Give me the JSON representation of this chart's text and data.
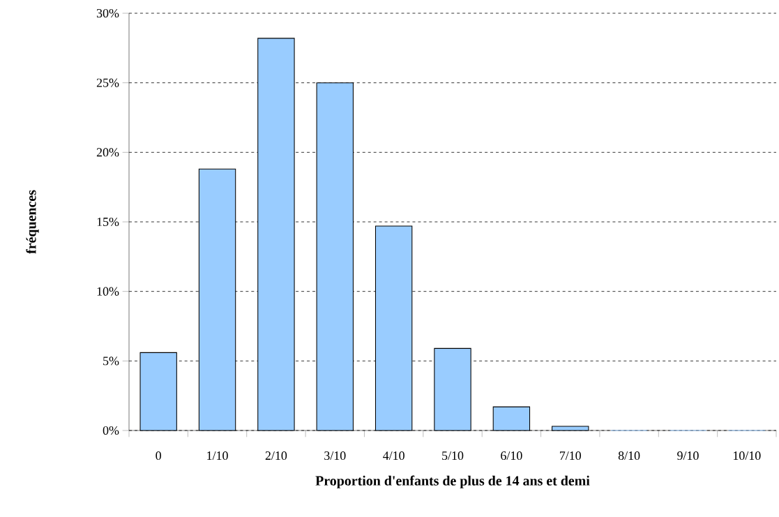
{
  "chart_data": {
    "type": "bar",
    "xlabel": "Proportion d'enfants de plus de 14 ans et demi",
    "ylabel": "fréquences",
    "categories": [
      "0",
      "1/10",
      "2/10",
      "3/10",
      "4/10",
      "5/10",
      "6/10",
      "7/10",
      "8/10",
      "9/10",
      "10/10"
    ],
    "values": [
      5.6,
      18.8,
      28.2,
      25.0,
      14.7,
      5.9,
      1.7,
      0.3,
      0,
      0,
      0
    ],
    "color": "#99ccff",
    "ylim": [
      0,
      30
    ],
    "yticks": [
      {
        "value": 0,
        "label": "0%"
      },
      {
        "value": 5,
        "label": "5%"
      },
      {
        "value": 10,
        "label": "10%"
      },
      {
        "value": 15,
        "label": "15%"
      },
      {
        "value": 20,
        "label": "20%"
      },
      {
        "value": 25,
        "label": "25%"
      },
      {
        "value": 30,
        "label": "30%"
      }
    ],
    "grid": "y"
  }
}
